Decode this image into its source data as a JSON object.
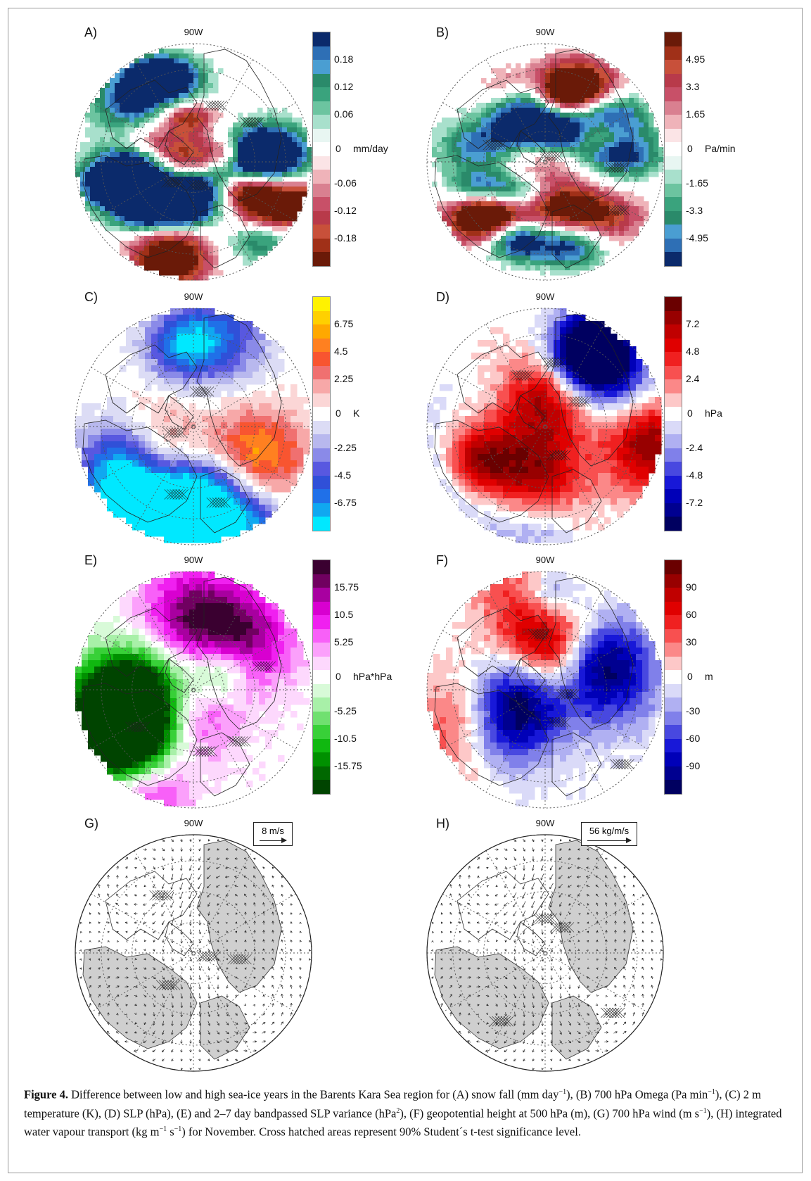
{
  "figure": {
    "panels": [
      {
        "id": "A",
        "label": "A)",
        "top_label": "90W",
        "scheme": "bluegreen_red",
        "unit": "mm/day",
        "ticks": [
          "0.18",
          "0.12",
          "0.06",
          "0",
          "-0.06",
          "-0.12",
          "-0.18"
        ],
        "colors": [
          "#0b2a6b",
          "#2e6fb5",
          "#4a9ed2",
          "#2a8a6a",
          "#3aa37d",
          "#6cc4a0",
          "#a8e0cc",
          "#e8f6f2",
          "#ffffff",
          "#fbe4e6",
          "#efb3b9",
          "#d98090",
          "#c85068",
          "#b83a4a",
          "#c8503a",
          "#a03018",
          "#6a1a08"
        ],
        "pos_color": "#2e9a78",
        "neg_color": "#b8384c"
      },
      {
        "id": "B",
        "label": "B)",
        "top_label": "90W",
        "scheme": "red_bluegreen",
        "unit": "Pa/min",
        "ticks": [
          "4.95",
          "3.3",
          "1.65",
          "0",
          "-1.65",
          "-3.3",
          "-4.95"
        ],
        "colors": [
          "#6a1a08",
          "#a03018",
          "#c8503a",
          "#b83a4a",
          "#c85068",
          "#d98090",
          "#efb3b9",
          "#fbe4e6",
          "#ffffff",
          "#e8f6f2",
          "#a8e0cc",
          "#6cc4a0",
          "#3aa37d",
          "#2a8a6a",
          "#4a9ed2",
          "#2e6fb5",
          "#0b2a6b"
        ],
        "pos_color": "#b8384c",
        "neg_color": "#2e9a78"
      },
      {
        "id": "C",
        "label": "C)",
        "top_label": "90W",
        "scheme": "temp",
        "unit": "K",
        "ticks": [
          "6.75",
          "4.5",
          "2.25",
          "0",
          "-2.25",
          "-4.5",
          "-6.75"
        ],
        "colors": [
          "#fff200",
          "#ffd000",
          "#ffa800",
          "#ff8020",
          "#f85530",
          "#f07070",
          "#f7a8a8",
          "#fbd6d6",
          "#ffffff",
          "#dcdcf5",
          "#b8b8ee",
          "#8a8ae8",
          "#5858e0",
          "#3050d8",
          "#2070e8",
          "#10a8f0",
          "#00e8ff"
        ],
        "pos_color": "#f07070",
        "neg_color": "#5a6ae0"
      },
      {
        "id": "D",
        "label": "D)",
        "top_label": "90W",
        "scheme": "redblue",
        "unit": "hPa",
        "ticks": [
          "7.2",
          "4.8",
          "2.4",
          "0",
          "-2.4",
          "-4.8",
          "-7.2"
        ],
        "colors": [
          "#6a0000",
          "#980000",
          "#c00000",
          "#e00000",
          "#f02020",
          "#f85050",
          "#fb8888",
          "#fdc8c8",
          "#ffffff",
          "#dadaf8",
          "#b0b0f2",
          "#8080ea",
          "#4848e0",
          "#1818d8",
          "#0000b8",
          "#000090",
          "#000060"
        ],
        "pos_color": "#e01818",
        "neg_color": "#2020d0"
      },
      {
        "id": "E",
        "label": "E)",
        "top_label": "90W",
        "scheme": "purplegreen",
        "unit": "hPa*hPa",
        "ticks": [
          "15.75",
          "10.5",
          "5.25",
          "0",
          "-5.25",
          "-10.5",
          "-15.75"
        ],
        "colors": [
          "#3a0030",
          "#700060",
          "#a800a0",
          "#d800d0",
          "#f020f0",
          "#f860f8",
          "#fba0fb",
          "#fdd8fd",
          "#ffffff",
          "#d8fad8",
          "#a8f0a8",
          "#70e070",
          "#38d038",
          "#10b810",
          "#009000",
          "#006800",
          "#004400"
        ],
        "pos_color": "#d020d0",
        "neg_color": "#30c030"
      },
      {
        "id": "F",
        "label": "F)",
        "top_label": "90W",
        "scheme": "redblue",
        "unit": "m",
        "ticks": [
          "90",
          "60",
          "30",
          "0",
          "-30",
          "-60",
          "-90"
        ],
        "colors": [
          "#6a0000",
          "#980000",
          "#c00000",
          "#e00000",
          "#f02020",
          "#f85050",
          "#fb8888",
          "#fdc8c8",
          "#ffffff",
          "#dadaf8",
          "#b0b0f2",
          "#8080ea",
          "#4848e0",
          "#1818d8",
          "#0000b8",
          "#000090",
          "#000060"
        ],
        "pos_color": "#e01818",
        "neg_color": "#2020d0"
      },
      {
        "id": "G",
        "label": "G)",
        "top_label": "90W",
        "scheme": "vector",
        "ref_vector": "8 m/s"
      },
      {
        "id": "H",
        "label": "H)",
        "top_label": "90W",
        "scheme": "vector",
        "ref_vector": "56 kg/m/s"
      }
    ]
  },
  "caption": {
    "bold": "Figure 4.",
    "t1": " Difference between low and high sea-ice years in the Barents Kara Sea region for (A) snow fall (mm day",
    "s1": "−1",
    "t2": "), (B) 700 hPa Omega (Pa min",
    "s2": "−1",
    "t3": "), (C) 2 m temperature (K), (D) SLP (hPa), (E) and 2–7  day bandpassed SLP variance (hPa",
    "s3": "2",
    "t4": "), (F) geopotential height at 500 hPa (m), (G) 700 hPa wind (m s",
    "s4": "−1",
    "t5": "), (H) integrated water vapour transport (kg m",
    "s5": "−1",
    "t6": " s",
    "s6": "−1",
    "t7": ") for November. Cross hatched areas represent 90% Student´s t-test significance level."
  }
}
